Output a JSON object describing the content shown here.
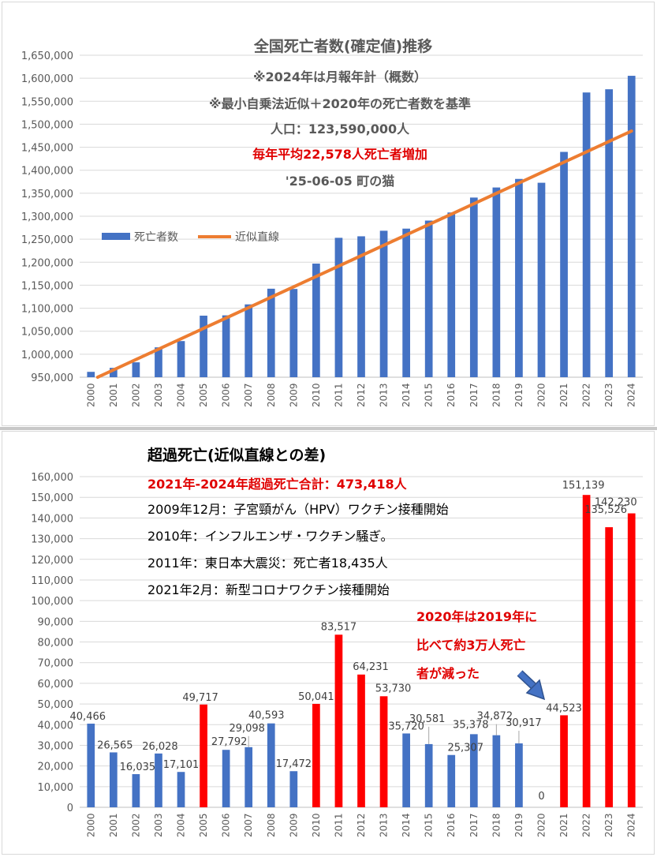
{
  "colors": {
    "blue": "#4472c4",
    "orange": "#ed7d31",
    "red": "#ff0000",
    "annot_red": "#e00000",
    "arrow": "#4472c4"
  },
  "top": {
    "title": "全国死亡者数(確定値)推移",
    "notes": [
      "※2024年は月報年計（概数）",
      "※最小自乗法近似＋2020年の死亡者数を基準",
      "人口：123,590,000人",
      "毎年平均22,578人死亡者増加",
      "'25-06-05 町の猫"
    ],
    "legend": {
      "bars": "死亡者数",
      "line": "近似直線"
    }
  },
  "bottom": {
    "title": "超過死亡(近似直線との差)",
    "notes": [
      "2021年-2024年超過死亡合計：473,418人",
      "2009年12月：子宮頸がん（HPV）ワクチン接種開始",
      "2010年：インフルエンザ・ワクチン騒ぎ。",
      "2011年：東日本大震災：死亡者18,435人",
      "2021年2月：新型コロナワクチン接種開始"
    ],
    "callout": [
      "2020年は2019年に",
      "比べて約3万人死亡",
      "者が減った"
    ]
  },
  "chart_data": [
    {
      "type": "bar",
      "title": "全国死亡者数(確定値)推移",
      "categories": [
        "2000",
        "2001",
        "2002",
        "2003",
        "2004",
        "2005",
        "2006",
        "2007",
        "2008",
        "2009",
        "2010",
        "2011",
        "2012",
        "2013",
        "2014",
        "2015",
        "2016",
        "2017",
        "2018",
        "2019",
        "2020",
        "2021",
        "2022",
        "2023",
        "2024"
      ],
      "series": [
        {
          "name": "死亡者数",
          "type": "bar",
          "values": [
            961653,
            970331,
            982379,
            1014951,
            1028602,
            1083796,
            1084451,
            1108334,
            1142407,
            1141865,
            1197014,
            1253066,
            1256359,
            1268438,
            1273025,
            1290510,
            1308158,
            1340567,
            1362470,
            1381093,
            1372755,
            1439856,
            1569050,
            1576016,
            1605298
          ]
        },
        {
          "name": "近似直線",
          "type": "line",
          "values": [
            943268,
            965846,
            988424,
            1011002,
            1033580,
            1056158,
            1078736,
            1101314,
            1123892,
            1146470,
            1169048,
            1191626,
            1214204,
            1236782,
            1259360,
            1281938,
            1304516,
            1327094,
            1349672,
            1372250,
            1394828,
            1417406,
            1439984,
            1462562,
            1485140
          ]
        }
      ],
      "ylim": [
        950000,
        1650000
      ],
      "yticks": [
        "950,000",
        "1,000,000",
        "1,050,000",
        "1,100,000",
        "1,150,000",
        "1,200,000",
        "1,250,000",
        "1,300,000",
        "1,350,000",
        "1,400,000",
        "1,450,000",
        "1,500,000",
        "1,550,000",
        "1,600,000",
        "1,650,000"
      ],
      "legend": "left-middle",
      "grid": true
    },
    {
      "type": "bar",
      "title": "超過死亡(近似直線との差)",
      "categories": [
        "2000",
        "2001",
        "2002",
        "2003",
        "2004",
        "2005",
        "2006",
        "2007",
        "2008",
        "2009",
        "2010",
        "2011",
        "2012",
        "2013",
        "2014",
        "2015",
        "2016",
        "2017",
        "2018",
        "2019",
        "2020",
        "2021",
        "2022",
        "2023",
        "2024"
      ],
      "values": [
        40466,
        26565,
        16035,
        26028,
        17101,
        49717,
        27792,
        29098,
        40593,
        17472,
        50041,
        83517,
        64231,
        53730,
        35720,
        30581,
        25307,
        35378,
        34872,
        30917,
        0,
        44523,
        151139,
        135526,
        142230
      ],
      "labels": [
        "40,466",
        "26,565",
        "16,035",
        "26,028",
        "17,101",
        "49,717",
        "27,792",
        "29,098",
        "40,593",
        "17,472",
        "50,041",
        "83,517",
        "64,231",
        "53,730",
        "35,720",
        "30,581",
        "25,307",
        "35,378",
        "34,872",
        "30,917",
        "0",
        "44,523",
        "151,139",
        "135,526",
        "142,230"
      ],
      "highlighted": [
        "2005",
        "2010",
        "2011",
        "2012",
        "2013",
        "2021",
        "2022",
        "2023",
        "2024"
      ],
      "ylim": [
        0,
        160000
      ],
      "yticks": [
        "0",
        "10,000",
        "20,000",
        "30,000",
        "40,000",
        "50,000",
        "60,000",
        "70,000",
        "80,000",
        "90,000",
        "100,000",
        "110,000",
        "120,000",
        "130,000",
        "140,000",
        "150,000",
        "160,000"
      ],
      "grid": true
    }
  ]
}
